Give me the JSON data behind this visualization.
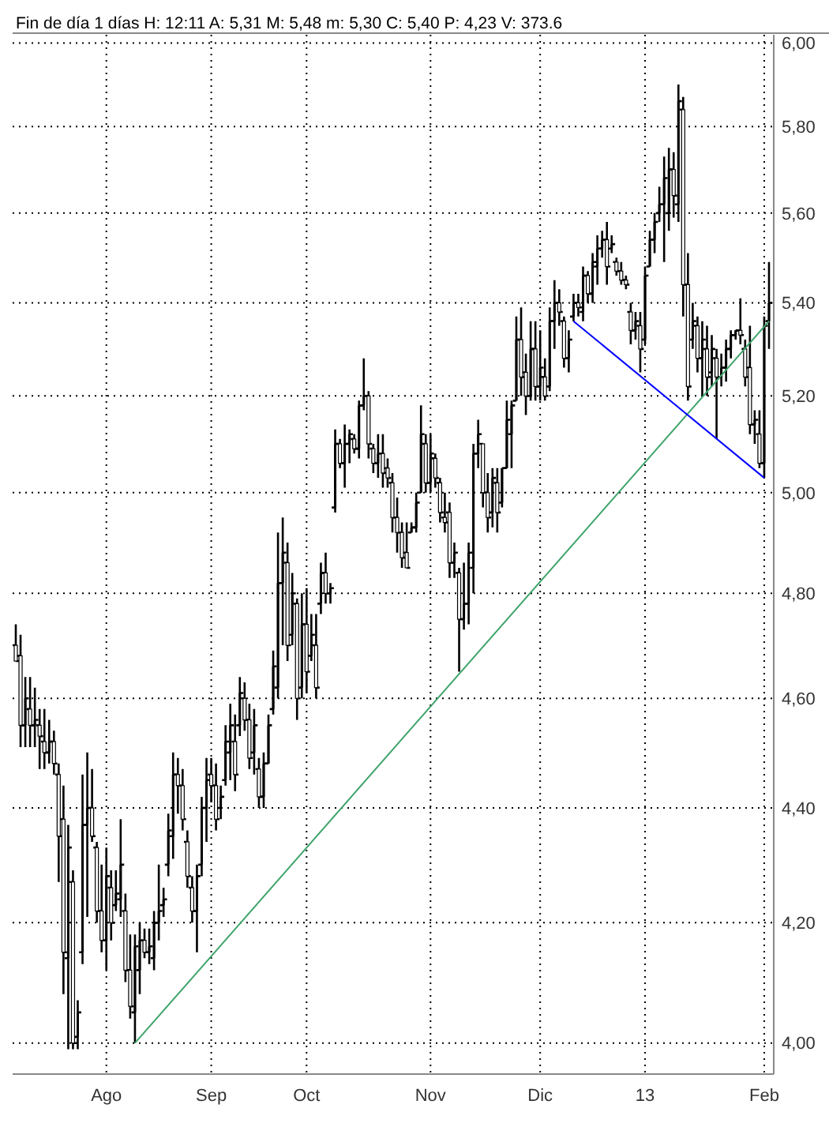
{
  "chart_data": {
    "type": "candlestick",
    "title": "Fin de día 1 días H: 12:11 A: 5,31 M: 5,48 m: 5,30 C: 5,40 P: 4,23 V: 373.6",
    "color": "#000000",
    "log": true,
    "grid": true,
    "ylim": [
      3.95,
      6.02
    ],
    "yticks": [
      {
        "value": 4.0,
        "label": "4,00"
      },
      {
        "value": 4.2,
        "label": "4,20"
      },
      {
        "value": 4.4,
        "label": "4,40"
      },
      {
        "value": 4.6,
        "label": "4,60"
      },
      {
        "value": 4.8,
        "label": "4,80"
      },
      {
        "value": 5.0,
        "label": "5,00"
      },
      {
        "value": 5.2,
        "label": "5,20"
      },
      {
        "value": 5.4,
        "label": "5,40"
      },
      {
        "value": 5.6,
        "label": "5,60"
      },
      {
        "value": 5.8,
        "label": "5,80"
      },
      {
        "value": 6.0,
        "label": "6,00"
      }
    ],
    "categories": [
      null,
      null,
      null,
      null,
      null,
      null,
      null,
      null,
      null,
      null,
      null,
      null,
      null,
      null,
      null,
      null,
      null,
      null,
      null,
      "Ago",
      null,
      null,
      null,
      null,
      null,
      null,
      null,
      null,
      null,
      null,
      null,
      null,
      null,
      null,
      null,
      null,
      null,
      null,
      null,
      null,
      null,
      "Sep",
      null,
      null,
      null,
      null,
      null,
      null,
      null,
      null,
      null,
      null,
      null,
      null,
      null,
      null,
      null,
      null,
      null,
      null,
      null,
      "Oct",
      null,
      null,
      null,
      null,
      null,
      null,
      null,
      null,
      null,
      null,
      null,
      null,
      null,
      null,
      null,
      null,
      null,
      null,
      null,
      null,
      null,
      null,
      null,
      null,
      null,
      "Nov",
      null,
      null,
      null,
      null,
      null,
      null,
      null,
      null,
      null,
      null,
      null,
      null,
      null,
      null,
      null,
      null,
      null,
      null,
      null,
      null,
      null,
      null,
      "Dic",
      null,
      null,
      null,
      null,
      null,
      null,
      null,
      null,
      null,
      null,
      null,
      null,
      null,
      null,
      null,
      null,
      null,
      null,
      null,
      null,
      null,
      "13",
      null,
      null,
      null,
      null,
      null,
      null,
      null,
      null,
      null,
      null,
      null,
      null,
      null,
      null,
      null,
      null,
      null,
      null,
      null,
      null,
      null,
      null,
      null,
      null,
      "Feb",
      null
    ],
    "ohlc": [
      [
        4.7,
        4.74,
        4.67,
        4.67
      ],
      [
        4.68,
        4.72,
        4.51,
        4.55
      ],
      [
        4.55,
        4.64,
        4.51,
        4.6
      ],
      [
        4.58,
        4.64,
        4.51,
        4.55
      ],
      [
        4.55,
        4.62,
        4.51,
        4.56
      ],
      [
        4.55,
        4.58,
        4.47,
        4.53
      ],
      [
        4.52,
        4.58,
        4.47,
        4.5
      ],
      [
        4.5,
        4.56,
        4.48,
        4.52
      ],
      [
        4.52,
        4.54,
        4.46,
        4.48
      ],
      [
        4.46,
        4.48,
        4.27,
        4.35
      ],
      [
        4.38,
        4.44,
        4.08,
        4.15
      ],
      [
        4.14,
        4.37,
        3.99,
        4.33
      ],
      [
        4.27,
        4.29,
        3.99,
        4.0
      ],
      [
        4.01,
        4.07,
        3.99,
        4.05
      ],
      [
        4.15,
        4.46,
        4.13,
        4.37
      ],
      [
        4.37,
        4.5,
        4.21,
        4.4
      ],
      [
        4.4,
        4.47,
        4.34,
        4.35
      ],
      [
        4.33,
        4.34,
        4.2,
        4.22
      ],
      [
        4.22,
        4.3,
        4.15,
        4.17
      ],
      [
        4.17,
        4.33,
        4.12,
        4.28
      ],
      [
        4.26,
        4.29,
        4.17,
        4.2
      ],
      [
        4.23,
        4.29,
        4.22,
        4.25
      ],
      [
        4.24,
        4.38,
        4.21,
        4.3
      ],
      [
        4.22,
        4.25,
        4.1,
        4.12
      ],
      [
        4.12,
        4.18,
        4.04,
        4.06
      ],
      [
        4.05,
        4.18,
        4.0,
        4.16
      ],
      [
        4.12,
        4.2,
        4.08,
        4.17
      ],
      [
        4.17,
        4.19,
        4.14,
        4.15
      ],
      [
        4.15,
        4.19,
        4.13,
        4.16
      ],
      [
        4.14,
        4.22,
        4.12,
        4.2
      ],
      [
        4.2,
        4.3,
        4.17,
        4.22
      ],
      [
        4.23,
        4.26,
        4.21,
        4.24
      ],
      [
        4.3,
        4.39,
        4.28,
        4.36
      ],
      [
        4.35,
        4.5,
        4.31,
        4.46
      ],
      [
        4.46,
        4.49,
        4.39,
        4.44
      ],
      [
        4.44,
        4.47,
        4.36,
        4.38
      ],
      [
        4.34,
        4.36,
        4.26,
        4.28
      ],
      [
        4.26,
        4.28,
        4.2,
        4.22
      ],
      [
        4.22,
        4.3,
        4.15,
        4.28
      ],
      [
        4.3,
        4.42,
        4.28,
        4.4
      ],
      [
        4.4,
        4.49,
        4.34,
        4.45
      ],
      [
        4.46,
        4.49,
        4.41,
        4.44
      ],
      [
        4.44,
        4.48,
        4.36,
        4.38
      ],
      [
        4.4,
        4.44,
        4.38,
        4.42
      ],
      [
        4.45,
        4.55,
        4.44,
        4.52
      ],
      [
        4.5,
        4.59,
        4.45,
        4.55
      ],
      [
        4.52,
        4.57,
        4.43,
        4.46
      ],
      [
        4.55,
        4.64,
        4.53,
        4.61
      ],
      [
        4.6,
        4.63,
        4.54,
        4.56
      ],
      [
        4.56,
        4.59,
        4.47,
        4.49
      ],
      [
        4.5,
        4.58,
        4.46,
        4.55
      ],
      [
        4.47,
        4.49,
        4.4,
        4.42
      ],
      [
        4.42,
        4.5,
        4.4,
        4.48
      ],
      [
        4.48,
        4.57,
        4.48,
        4.55
      ],
      [
        4.58,
        4.69,
        4.57,
        4.66
      ],
      [
        4.62,
        4.92,
        4.6,
        4.82
      ],
      [
        4.82,
        4.95,
        4.7,
        4.88
      ],
      [
        4.86,
        4.9,
        4.67,
        4.7
      ],
      [
        4.72,
        4.84,
        4.7,
        4.8
      ],
      [
        4.78,
        4.79,
        4.56,
        4.6
      ],
      [
        4.62,
        4.8,
        4.6,
        4.74
      ],
      [
        4.74,
        4.81,
        4.61,
        4.65
      ],
      [
        4.68,
        4.76,
        4.67,
        4.72
      ],
      [
        4.7,
        4.76,
        4.6,
        4.62
      ],
      [
        4.78,
        4.86,
        4.76,
        4.84
      ],
      [
        4.84,
        4.88,
        4.78,
        4.8
      ],
      [
        4.8,
        4.82,
        4.78,
        4.81
      ],
      [
        4.97,
        5.13,
        4.96,
        5.1
      ],
      [
        5.1,
        5.11,
        5.05,
        5.06
      ],
      [
        5.06,
        5.14,
        5.01,
        5.1
      ],
      [
        5.1,
        5.13,
        5.06,
        5.12
      ],
      [
        5.11,
        5.12,
        5.08,
        5.09
      ],
      [
        5.09,
        5.19,
        5.07,
        5.18
      ],
      [
        5.18,
        5.28,
        5.17,
        5.2
      ],
      [
        5.2,
        5.21,
        5.07,
        5.1
      ],
      [
        5.09,
        5.1,
        5.04,
        5.06
      ],
      [
        5.06,
        5.12,
        5.03,
        5.08
      ],
      [
        5.08,
        5.12,
        5.01,
        5.04
      ],
      [
        5.05,
        5.07,
        5.01,
        5.03
      ],
      [
        5.02,
        5.04,
        4.92,
        4.95
      ],
      [
        4.95,
        4.99,
        4.88,
        4.92
      ],
      [
        4.92,
        4.94,
        4.85,
        4.87
      ],
      [
        4.88,
        4.94,
        4.85,
        4.85
      ],
      [
        4.92,
        4.94,
        4.92,
        4.93
      ],
      [
        4.93,
        5.0,
        4.92,
        4.98
      ],
      [
        5.0,
        5.18,
        5.0,
        5.12
      ],
      [
        5.1,
        5.12,
        5.0,
        5.02
      ],
      [
        5.02,
        5.12,
        5.0,
        5.08
      ],
      [
        5.07,
        5.08,
        5.01,
        5.03
      ],
      [
        5.02,
        5.03,
        4.94,
        4.96
      ],
      [
        4.95,
        5.0,
        4.92,
        4.94
      ],
      [
        4.96,
        4.98,
        4.83,
        4.86
      ],
      [
        4.86,
        4.9,
        4.83,
        4.88
      ],
      [
        4.84,
        4.85,
        4.65,
        4.75
      ],
      [
        4.75,
        4.86,
        4.73,
        4.78
      ],
      [
        4.78,
        4.9,
        4.74,
        4.88
      ],
      [
        4.85,
        5.1,
        4.8,
        5.08
      ],
      [
        5.08,
        5.15,
        5.05,
        5.12
      ],
      [
        5.1,
        5.1,
        4.97,
        5.0
      ],
      [
        5.0,
        5.04,
        4.92,
        4.95
      ],
      [
        4.96,
        5.05,
        4.93,
        5.03
      ],
      [
        5.02,
        5.05,
        4.92,
        4.96
      ],
      [
        4.98,
        5.05,
        4.97,
        5.05
      ],
      [
        5.05,
        5.19,
        5.05,
        5.15
      ],
      [
        5.12,
        5.19,
        5.05,
        5.18
      ],
      [
        5.19,
        5.37,
        5.19,
        5.32
      ],
      [
        5.32,
        5.39,
        5.2,
        5.24
      ],
      [
        5.25,
        5.29,
        5.16,
        5.2
      ],
      [
        5.2,
        5.36,
        5.19,
        5.3
      ],
      [
        5.3,
        5.36,
        5.19,
        5.22
      ],
      [
        5.22,
        5.34,
        5.19,
        5.26
      ],
      [
        5.24,
        5.28,
        5.19,
        5.2
      ],
      [
        5.22,
        5.39,
        5.21,
        5.36
      ],
      [
        5.36,
        5.45,
        5.3,
        5.4
      ],
      [
        5.4,
        5.43,
        5.35,
        5.38
      ],
      [
        5.36,
        5.37,
        5.26,
        5.28
      ],
      [
        5.28,
        5.34,
        5.25,
        5.32
      ],
      [
        5.37,
        5.42,
        5.36,
        5.4
      ],
      [
        5.4,
        5.42,
        5.37,
        5.39
      ],
      [
        5.38,
        5.48,
        5.36,
        5.46
      ],
      [
        5.46,
        5.47,
        5.4,
        5.42
      ],
      [
        5.42,
        5.51,
        5.4,
        5.49
      ],
      [
        5.48,
        5.55,
        5.44,
        5.52
      ],
      [
        5.52,
        5.56,
        5.5,
        5.54
      ],
      [
        5.54,
        5.58,
        5.44,
        5.48
      ],
      [
        5.52,
        5.55,
        5.51,
        5.53
      ],
      [
        5.49,
        5.5,
        5.46,
        5.47
      ],
      [
        5.47,
        5.49,
        5.44,
        5.45
      ],
      [
        5.45,
        5.46,
        5.43,
        5.44
      ],
      [
        5.38,
        5.4,
        5.31,
        5.34
      ],
      [
        5.34,
        5.38,
        5.32,
        5.36
      ],
      [
        5.35,
        5.38,
        5.25,
        5.3
      ],
      [
        5.32,
        5.48,
        5.31,
        5.46
      ],
      [
        5.48,
        5.56,
        5.48,
        5.54
      ],
      [
        5.54,
        5.6,
        5.51,
        5.58
      ],
      [
        5.6,
        5.66,
        5.58,
        5.62
      ],
      [
        5.62,
        5.73,
        5.49,
        5.68
      ],
      [
        5.6,
        5.75,
        5.56,
        5.7
      ],
      [
        5.7,
        5.74,
        5.59,
        5.64
      ],
      [
        5.62,
        5.9,
        5.58,
        5.86
      ],
      [
        5.84,
        5.87,
        5.37,
        5.44
      ],
      [
        5.44,
        5.51,
        5.19,
        5.22
      ],
      [
        5.32,
        5.4,
        5.3,
        5.36
      ],
      [
        5.35,
        5.37,
        5.25,
        5.28
      ],
      [
        5.28,
        5.36,
        5.2,
        5.32
      ],
      [
        5.3,
        5.35,
        5.2,
        5.24
      ],
      [
        5.25,
        5.33,
        5.22,
        5.3
      ],
      [
        5.28,
        5.3,
        5.11,
        5.24
      ],
      [
        5.24,
        5.29,
        5.22,
        5.26
      ],
      [
        5.26,
        5.32,
        5.23,
        5.3
      ],
      [
        5.3,
        5.34,
        5.28,
        5.33
      ],
      [
        5.33,
        5.34,
        5.32,
        5.34
      ],
      [
        5.34,
        5.41,
        5.31,
        5.33
      ],
      [
        5.3,
        5.32,
        5.22,
        5.24
      ],
      [
        5.26,
        5.35,
        5.12,
        5.14
      ],
      [
        5.14,
        5.17,
        5.1,
        5.15
      ],
      [
        5.12,
        5.17,
        5.05,
        5.06
      ],
      [
        5.06,
        5.37,
        5.03,
        5.35
      ],
      [
        5.36,
        5.49,
        5.3,
        5.4
      ]
    ],
    "series": [
      {
        "type": "line",
        "color": "#3fa46a",
        "values": [
          null,
          null,
          null,
          null,
          null,
          null,
          null,
          null,
          null,
          null,
          null,
          null,
          null,
          null,
          null,
          null,
          null,
          null,
          null,
          null,
          null,
          null,
          null,
          null,
          null,
          4.0,
          null,
          null,
          null,
          null,
          null,
          null,
          null,
          null,
          null,
          null,
          null,
          null,
          null,
          null,
          null,
          null,
          null,
          null,
          null,
          null,
          null,
          null,
          null,
          null,
          null,
          null,
          null,
          null,
          null,
          null,
          null,
          null,
          null,
          null,
          null,
          null,
          null,
          null,
          null,
          null,
          null,
          null,
          null,
          null,
          null,
          null,
          null,
          null,
          null,
          null,
          null,
          null,
          null,
          null,
          null,
          null,
          null,
          null,
          null,
          null,
          null,
          null,
          null,
          null,
          null,
          null,
          null,
          null,
          null,
          null,
          null,
          null,
          null,
          null,
          null,
          null,
          null,
          null,
          null,
          null,
          null,
          null,
          null,
          null,
          null,
          null,
          null,
          null,
          null,
          null,
          null,
          null,
          null,
          null,
          null,
          null,
          null,
          null,
          null,
          null,
          null,
          null,
          null,
          null,
          null,
          null,
          null,
          null,
          null,
          null,
          null,
          null,
          null,
          null,
          null,
          null,
          null,
          null,
          null,
          null,
          null,
          null,
          null,
          null,
          null,
          null,
          null,
          null,
          null,
          null,
          null,
          null,
          5.36
        ]
      },
      {
        "type": "line",
        "color": "#0000ff",
        "values": [
          null,
          null,
          null,
          null,
          null,
          null,
          null,
          null,
          null,
          null,
          null,
          null,
          null,
          null,
          null,
          null,
          null,
          null,
          null,
          null,
          null,
          null,
          null,
          null,
          null,
          null,
          null,
          null,
          null,
          null,
          null,
          null,
          null,
          null,
          null,
          null,
          null,
          null,
          null,
          null,
          null,
          null,
          null,
          null,
          null,
          null,
          null,
          null,
          null,
          null,
          null,
          null,
          null,
          null,
          null,
          null,
          null,
          null,
          null,
          null,
          null,
          null,
          null,
          null,
          null,
          null,
          null,
          null,
          null,
          null,
          null,
          null,
          null,
          null,
          null,
          null,
          null,
          null,
          null,
          null,
          null,
          null,
          null,
          null,
          null,
          null,
          null,
          null,
          null,
          null,
          null,
          null,
          null,
          null,
          null,
          null,
          null,
          null,
          null,
          null,
          null,
          null,
          null,
          null,
          null,
          null,
          null,
          null,
          null,
          null,
          null,
          null,
          null,
          null,
          null,
          null,
          null,
          5.36,
          null,
          null,
          null,
          null,
          null,
          null,
          null,
          null,
          null,
          null,
          null,
          null,
          null,
          null,
          null,
          null,
          null,
          null,
          null,
          null,
          null,
          null,
          null,
          null,
          null,
          null,
          null,
          null,
          null,
          null,
          null,
          null,
          null,
          null,
          null,
          null,
          null,
          null,
          null,
          5.03,
          null
        ]
      }
    ]
  }
}
